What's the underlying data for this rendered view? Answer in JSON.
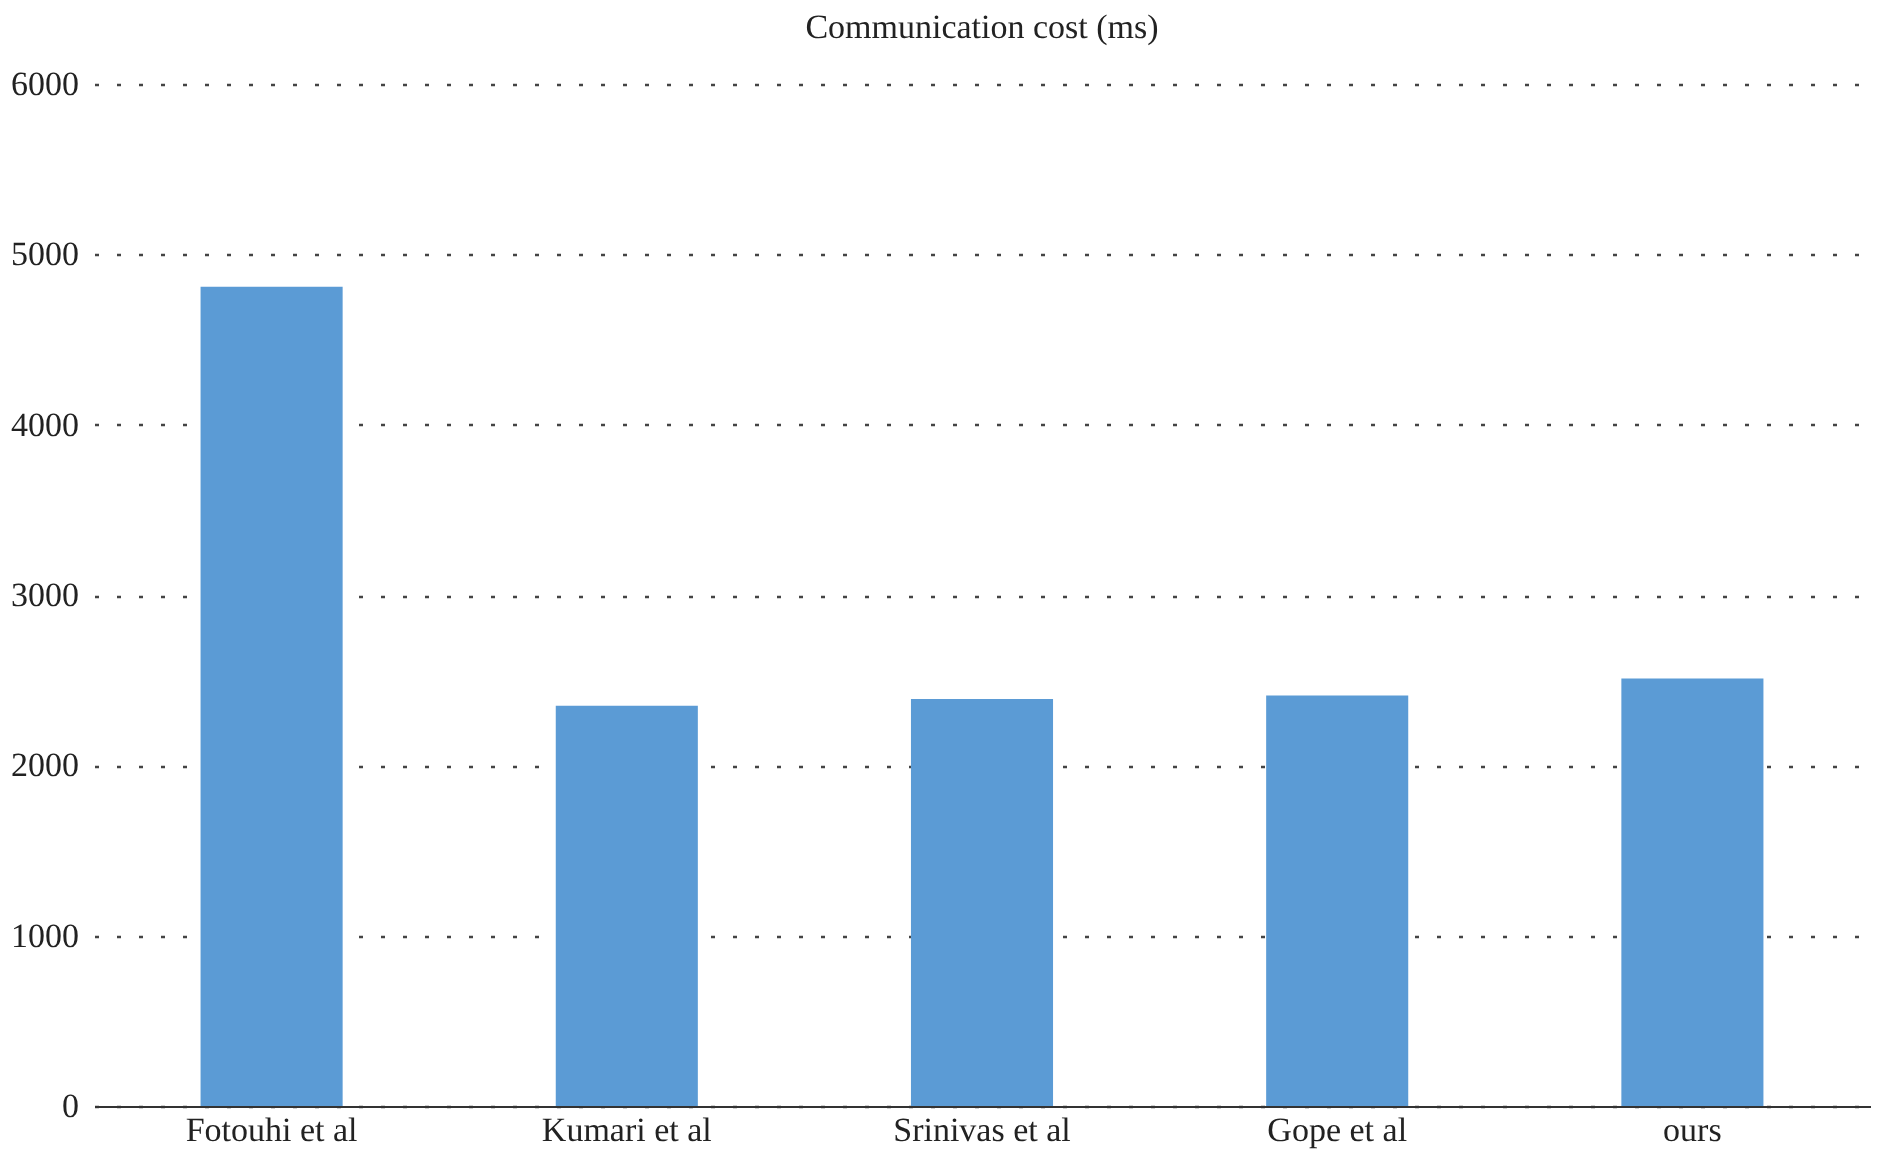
{
  "chart_data": {
    "type": "bar",
    "title": "Communication cost (ms)",
    "categories": [
      "Fotouhi et al",
      "Kumari et al",
      "Srinivas et al",
      "Gope et al",
      "ours"
    ],
    "values": [
      4810,
      2350,
      2390,
      2410,
      2510
    ],
    "color": "#5b9bd5",
    "ylim": [
      0,
      6000
    ],
    "yticks": [
      0,
      1000,
      2000,
      3000,
      4000,
      5000,
      6000
    ],
    "grid": "y"
  }
}
